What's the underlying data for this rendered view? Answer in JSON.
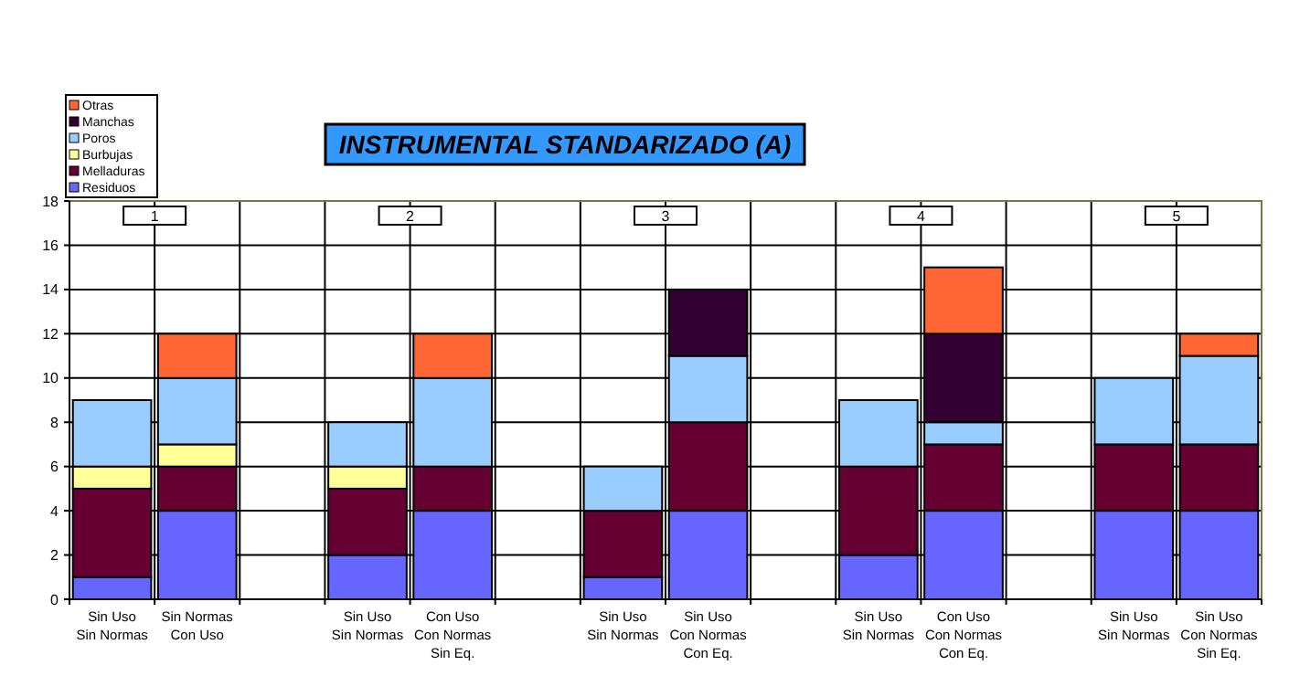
{
  "chart_data": {
    "type": "bar",
    "title": "INSTRUMENTAL STANDARIZADO (A)",
    "stacked": true,
    "grid": true,
    "legend": "top left",
    "categories": [
      "Sin Uso\nSin Normas",
      "Sin Normas\nCon Uso",
      null,
      "Sin Uso\nSin Normas",
      "Con Uso\nCon Normas\nSin Eq.",
      null,
      "Sin Uso\nSin Normas",
      "Sin Uso\nCon Normas\nCon Eq.",
      null,
      "Sin Uso\nSin Normas",
      "Con Uso\nCon Normas\nCon Eq.",
      null,
      "Sin Uso\nSin Normas",
      "Sin Uso\nCon Normas\nSin Eq."
    ],
    "series": [
      {
        "name": "Residuos",
        "color": "#6666ff",
        "values": [
          1,
          4,
          null,
          2,
          4,
          null,
          1,
          4,
          null,
          2,
          4,
          null,
          4,
          4
        ]
      },
      {
        "name": "Melladuras",
        "color": "#660033",
        "values": [
          4,
          2,
          null,
          3,
          2,
          null,
          3,
          4,
          null,
          4,
          3,
          null,
          3,
          3
        ]
      },
      {
        "name": "Burbujas",
        "color": "#ffff99",
        "values": [
          1,
          1,
          null,
          1,
          0,
          null,
          0,
          0,
          null,
          0,
          0,
          null,
          0,
          0
        ]
      },
      {
        "name": "Poros",
        "color": "#99ccff",
        "values": [
          3,
          3,
          null,
          2,
          4,
          null,
          2,
          3,
          null,
          3,
          1,
          null,
          3,
          4
        ]
      },
      {
        "name": "Manchas",
        "color": "#330033",
        "values": [
          0,
          0,
          null,
          0,
          0,
          null,
          0,
          3,
          null,
          0,
          4,
          null,
          0,
          0
        ]
      },
      {
        "name": "Otras",
        "color": "#ff6633",
        "values": [
          0,
          2,
          null,
          0,
          2,
          null,
          0,
          0,
          null,
          0,
          3,
          null,
          0,
          1
        ]
      }
    ],
    "ylim": [
      0,
      18
    ],
    "yticks": [
      0,
      2,
      4,
      6,
      8,
      10,
      12,
      14,
      16,
      18
    ],
    "annotations": [
      "1",
      "2",
      "3",
      "4",
      "5"
    ]
  }
}
